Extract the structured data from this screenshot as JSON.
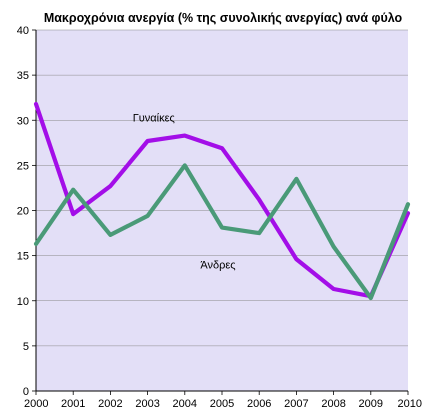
{
  "chart_data": {
    "type": "line",
    "title": "Μακροχρόνια ανεργία (% της συνολικής ανεργίας) ανά φύλο",
    "xlabel": "",
    "ylabel": "",
    "x": [
      "2000",
      "2001",
      "2002",
      "2003",
      "2004",
      "2005",
      "2006",
      "2007",
      "2008",
      "2009",
      "2010"
    ],
    "ylim": [
      0,
      40
    ],
    "yticks": [
      "0",
      "5",
      "10",
      "15",
      "20",
      "25",
      "30",
      "35",
      "40"
    ],
    "grid": true,
    "plot_background": "#e3dff7",
    "series": [
      {
        "name": "Γυναίκες",
        "color": "#a30ee8",
        "values": [
          31.8,
          19.6,
          22.7,
          27.7,
          28.3,
          26.9,
          21.2,
          14.6,
          11.3,
          10.5,
          19.7
        ]
      },
      {
        "name": "Άνδρες",
        "color": "#4a9a78",
        "values": [
          16.3,
          22.3,
          17.3,
          19.4,
          25.0,
          18.1,
          17.5,
          23.5,
          16.0,
          10.3,
          20.7
        ]
      }
    ]
  }
}
